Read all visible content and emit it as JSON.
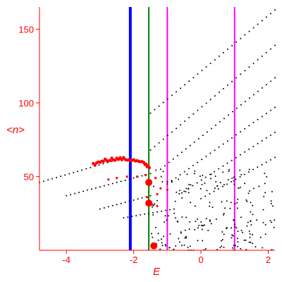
{
  "chart_data": {
    "type": "scatter",
    "title": "",
    "xlabel": "E",
    "ylabel": "<n>",
    "xlim": [
      -4.8,
      2.2
    ],
    "ylim": [
      0,
      165
    ],
    "grid": false,
    "legend": "none",
    "xticks": [
      -4,
      -2,
      0,
      2
    ],
    "yticks": [
      50,
      100,
      150
    ],
    "colors": {
      "axes": "#ff0000",
      "black_points": "#000000",
      "red_points": "#ff0000"
    },
    "vertical_lines": [
      {
        "x": -2.1,
        "color": "#0000ff",
        "width": "thick"
      },
      {
        "x": -1.55,
        "color": "#008000",
        "width": "thin"
      },
      {
        "x": -1.0,
        "color": "#ff00ff",
        "width": "thin"
      },
      {
        "x": 1.0,
        "color": "#ff00ff",
        "width": "thin"
      }
    ],
    "series": [
      {
        "color": "#000000",
        "marker": "dot",
        "bands": [
          {
            "x_from": -4.8,
            "y_from": 46,
            "x_to": -2.4,
            "y_to": 62
          },
          {
            "x_from": -4.0,
            "y_from": 37,
            "x_to": -1.5,
            "y_to": 52
          },
          {
            "x_from": -3.0,
            "y_from": 28,
            "x_to": -1.5,
            "y_to": 37
          },
          {
            "x_from": -2.3,
            "y_from": 22,
            "x_to": -0.8,
            "y_to": 28
          },
          {
            "x_from": -1.5,
            "y_from": 93,
            "x_to": 2.2,
            "y_to": 163
          },
          {
            "x_from": -1.5,
            "y_from": 68,
            "x_to": 2.2,
            "y_to": 139
          },
          {
            "x_from": -1.2,
            "y_from": 55,
            "x_to": 2.2,
            "y_to": 117
          },
          {
            "x_from": -1.0,
            "y_from": 45,
            "x_to": 2.2,
            "y_to": 97
          },
          {
            "x_from": -0.5,
            "y_from": 40,
            "x_to": 2.2,
            "y_to": 80
          },
          {
            "x_from": 0.0,
            "y_from": 35,
            "x_to": 2.2,
            "y_to": 63
          }
        ],
        "scatter_cloud": {
          "x_range": [
            -1.5,
            2.2
          ],
          "y_range": [
            0,
            55
          ]
        }
      },
      {
        "color": "#ff0000",
        "marker": "dot",
        "dense_arc": [
          {
            "x": -3.2,
            "y": 58
          },
          {
            "x": -2.9,
            "y": 61
          },
          {
            "x": -2.6,
            "y": 62
          },
          {
            "x": -2.3,
            "y": 62
          },
          {
            "x": -2.0,
            "y": 61
          },
          {
            "x": -1.7,
            "y": 59
          },
          {
            "x": -1.5,
            "y": 56
          }
        ],
        "band_points": [
          {
            "x": -2.75,
            "y": 48
          },
          {
            "x": -2.5,
            "y": 49
          },
          {
            "x": -2.2,
            "y": 50
          },
          {
            "x": -1.9,
            "y": 50
          },
          {
            "x": -1.65,
            "y": 51
          },
          {
            "x": -1.35,
            "y": 49
          },
          {
            "x": -1.2,
            "y": 42
          },
          {
            "x": -1.0,
            "y": 41
          },
          {
            "x": -1.3,
            "y": 38
          },
          {
            "x": -1.6,
            "y": 36
          },
          {
            "x": -1.45,
            "y": 31
          },
          {
            "x": -1.3,
            "y": 30
          }
        ],
        "large_points": [
          {
            "x": -1.55,
            "y": 46
          },
          {
            "x": -1.55,
            "y": 32
          },
          {
            "x": -1.4,
            "y": 3
          }
        ]
      }
    ]
  }
}
